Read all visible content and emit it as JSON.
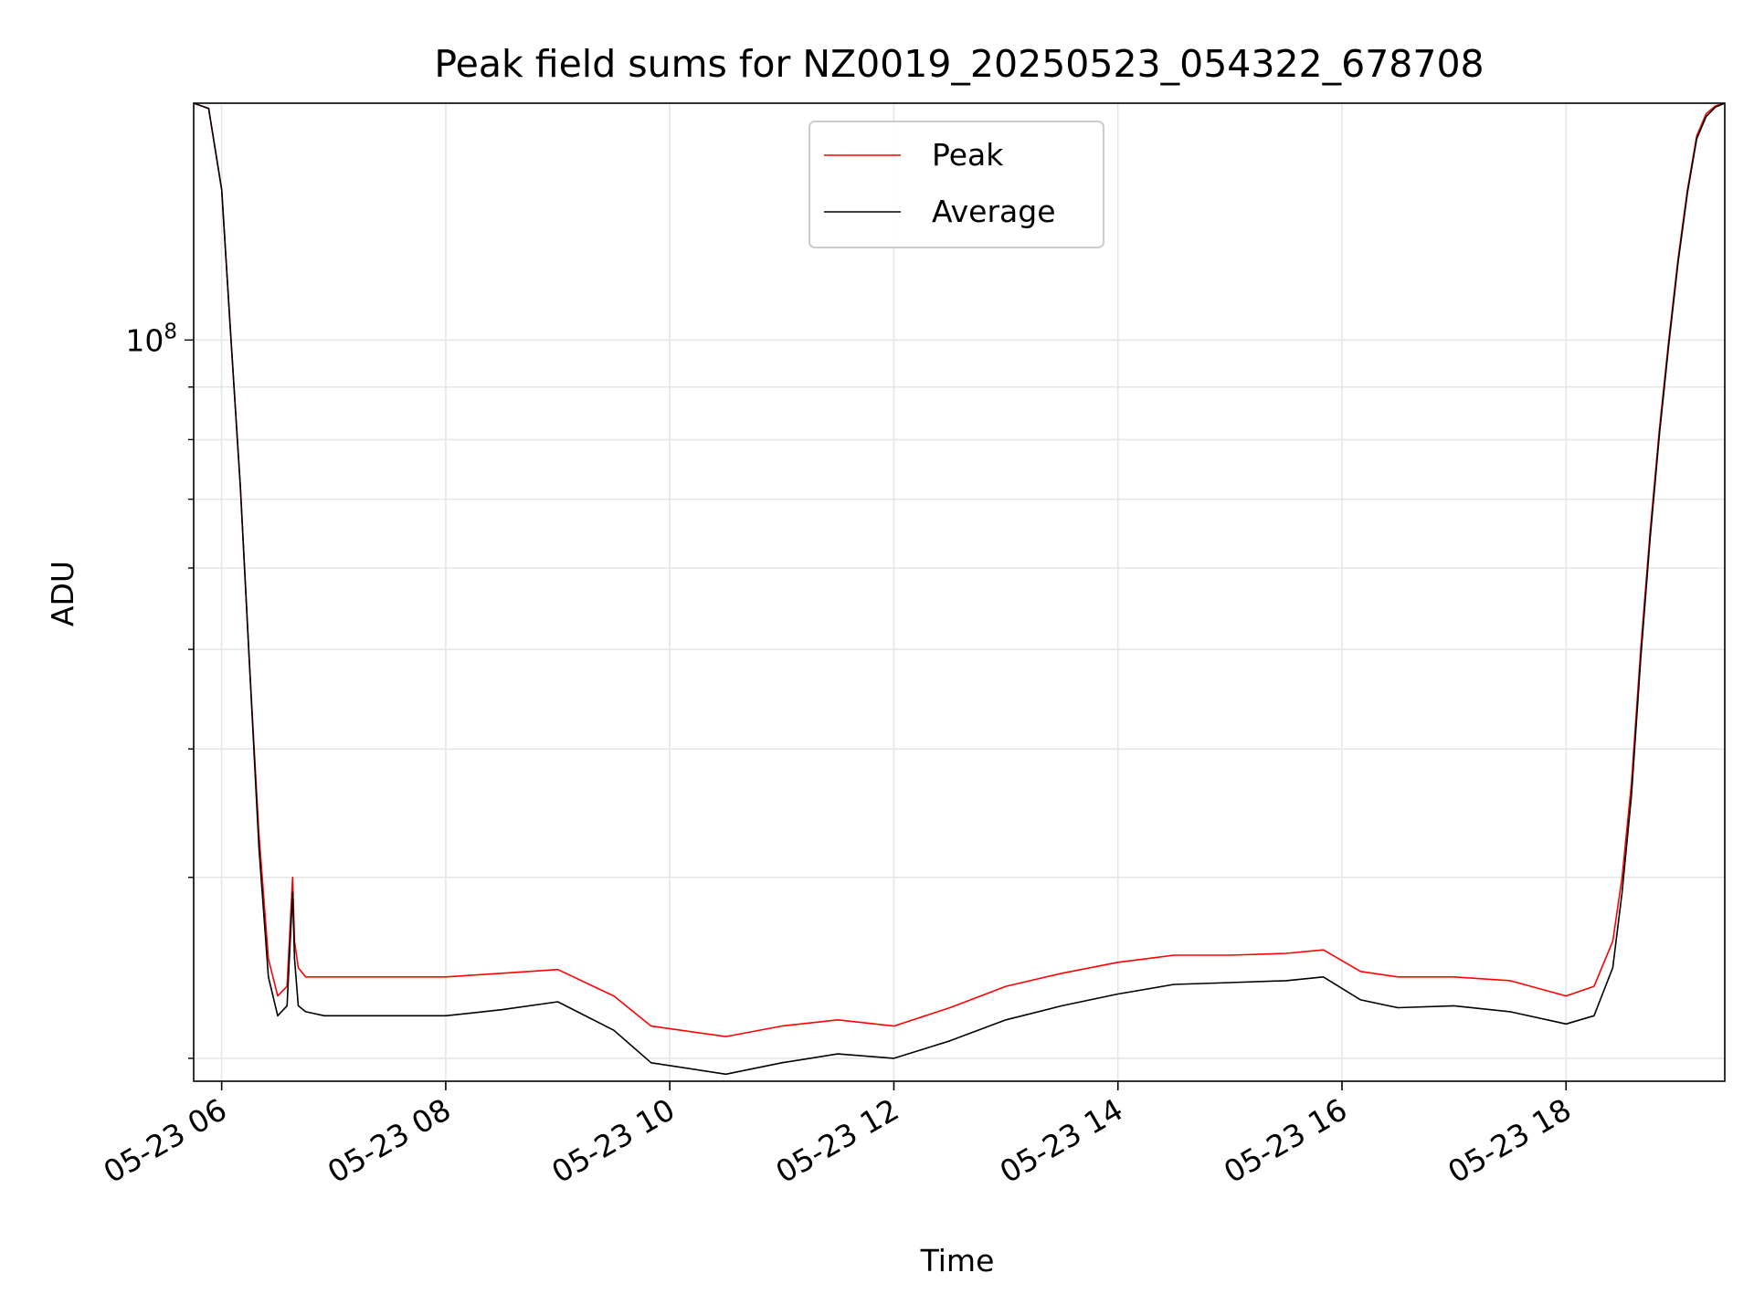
{
  "chart_data": {
    "type": "line",
    "title": "Peak field sums for NZ0019_20250523_054322_678708",
    "xlabel": "Time",
    "ylabel": "ADU",
    "yscale": "log",
    "grid": true,
    "legend_placement": "upper center",
    "x_ticks": [
      "05-23 06",
      "05-23 08",
      "05-23 10",
      "05-23 12",
      "05-23 14",
      "05-23 16",
      "05-23 18"
    ],
    "y_tick_major": {
      "base": "10",
      "exponent": "8"
    },
    "xlim": [
      "2025-05-23 05:45",
      "2025-05-23 19:25"
    ],
    "ylim": [
      19000000,
      170000000
    ],
    "colors": {
      "Peak": "#ff0000",
      "Average": "#000000"
    },
    "series": [
      {
        "name": "Peak",
        "x": [
          "2025-05-23 05:45",
          "2025-05-23 05:53",
          "2025-05-23 06:00",
          "2025-05-23 06:05",
          "2025-05-23 06:10",
          "2025-05-23 06:15",
          "2025-05-23 06:20",
          "2025-05-23 06:25",
          "2025-05-23 06:30",
          "2025-05-23 06:35",
          "2025-05-23 06:38",
          "2025-05-23 06:39",
          "2025-05-23 06:41",
          "2025-05-23 06:45",
          "2025-05-23 06:55",
          "2025-05-23 07:30",
          "2025-05-23 08:00",
          "2025-05-23 08:30",
          "2025-05-23 09:00",
          "2025-05-23 09:30",
          "2025-05-23 09:50",
          "2025-05-23 10:30",
          "2025-05-23 11:00",
          "2025-05-23 11:30",
          "2025-05-23 12:00",
          "2025-05-23 12:30",
          "2025-05-23 13:00",
          "2025-05-23 13:30",
          "2025-05-23 14:00",
          "2025-05-23 14:30",
          "2025-05-23 15:00",
          "2025-05-23 15:30",
          "2025-05-23 15:50",
          "2025-05-23 16:10",
          "2025-05-23 16:30",
          "2025-05-23 17:00",
          "2025-05-23 17:30",
          "2025-05-23 18:00",
          "2025-05-23 18:15",
          "2025-05-23 18:25",
          "2025-05-23 18:30",
          "2025-05-23 18:35",
          "2025-05-23 18:40",
          "2025-05-23 18:45",
          "2025-05-23 18:50",
          "2025-05-23 18:55",
          "2025-05-23 19:00",
          "2025-05-23 19:05",
          "2025-05-23 19:10",
          "2025-05-23 19:15",
          "2025-05-23 19:20",
          "2025-05-23 19:25"
        ],
        "values": [
          170000000,
          168000000,
          140000000,
          100000000,
          72000000,
          48000000,
          33000000,
          25000000,
          23000000,
          23500000,
          30000000,
          26000000,
          24500000,
          24000000,
          24000000,
          24000000,
          24000000,
          24200000,
          24400000,
          23000000,
          21500000,
          21000000,
          21500000,
          21800000,
          21500000,
          22400000,
          23500000,
          24200000,
          24800000,
          25200000,
          25200000,
          25300000,
          25500000,
          24300000,
          24000000,
          24000000,
          23800000,
          23000000,
          23500000,
          26000000,
          30000000,
          37000000,
          50000000,
          65000000,
          82000000,
          100000000,
          120000000,
          140000000,
          158000000,
          166000000,
          169000000,
          170000000
        ]
      },
      {
        "name": "Average",
        "x": [
          "2025-05-23 05:45",
          "2025-05-23 05:53",
          "2025-05-23 06:00",
          "2025-05-23 06:05",
          "2025-05-23 06:10",
          "2025-05-23 06:15",
          "2025-05-23 06:20",
          "2025-05-23 06:25",
          "2025-05-23 06:30",
          "2025-05-23 06:35",
          "2025-05-23 06:38",
          "2025-05-23 06:39",
          "2025-05-23 06:41",
          "2025-05-23 06:45",
          "2025-05-23 06:55",
          "2025-05-23 07:30",
          "2025-05-23 08:00",
          "2025-05-23 08:30",
          "2025-05-23 09:00",
          "2025-05-23 09:30",
          "2025-05-23 09:50",
          "2025-05-23 10:30",
          "2025-05-23 11:00",
          "2025-05-23 11:30",
          "2025-05-23 12:00",
          "2025-05-23 12:30",
          "2025-05-23 13:00",
          "2025-05-23 13:30",
          "2025-05-23 14:00",
          "2025-05-23 14:30",
          "2025-05-23 15:00",
          "2025-05-23 15:30",
          "2025-05-23 15:50",
          "2025-05-23 16:10",
          "2025-05-23 16:30",
          "2025-05-23 17:00",
          "2025-05-23 17:30",
          "2025-05-23 18:00",
          "2025-05-23 18:15",
          "2025-05-23 18:25",
          "2025-05-23 18:30",
          "2025-05-23 18:35",
          "2025-05-23 18:40",
          "2025-05-23 18:45",
          "2025-05-23 18:50",
          "2025-05-23 18:55",
          "2025-05-23 19:00",
          "2025-05-23 19:05",
          "2025-05-23 19:10",
          "2025-05-23 19:15",
          "2025-05-23 19:20",
          "2025-05-23 19:25"
        ],
        "values": [
          170000000,
          168000000,
          140000000,
          100000000,
          72000000,
          48000000,
          32000000,
          24000000,
          22000000,
          22500000,
          29000000,
          25000000,
          22500000,
          22200000,
          22000000,
          22000000,
          22000000,
          22300000,
          22700000,
          21300000,
          19800000,
          19300000,
          19800000,
          20200000,
          20000000,
          20800000,
          21800000,
          22500000,
          23100000,
          23600000,
          23700000,
          23800000,
          24000000,
          22800000,
          22400000,
          22500000,
          22200000,
          21600000,
          22000000,
          24500000,
          29000000,
          36000000,
          49000000,
          64000000,
          81000000,
          99000000,
          119000000,
          139000000,
          157000000,
          165000000,
          168500000,
          170000000
        ]
      }
    ]
  }
}
